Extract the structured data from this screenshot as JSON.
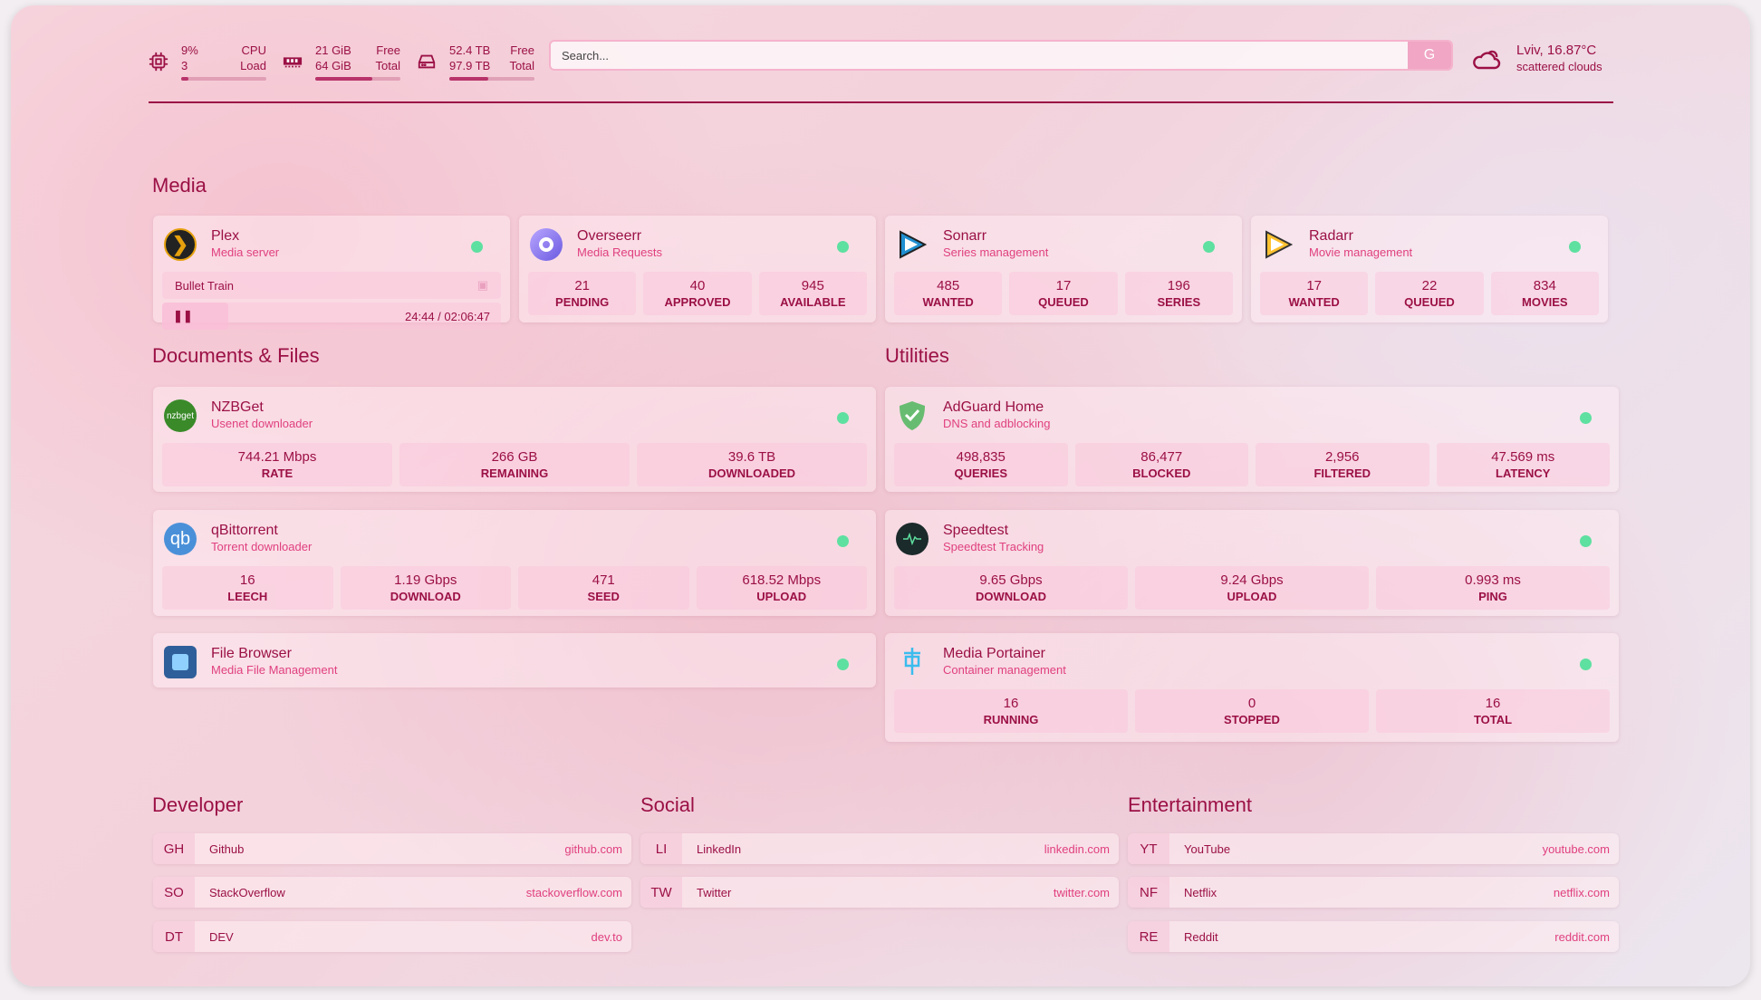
{
  "header": {
    "cpu": {
      "icon": "cpu-icon",
      "value": "9%",
      "label": "CPU",
      "sub": "3",
      "sub_label": "Load",
      "percent": 9
    },
    "memory": {
      "icon": "memory-icon",
      "value": "21 GiB",
      "label": "Free",
      "sub": "64 GiB",
      "sub_label": "Total",
      "percent": 67
    },
    "disk": {
      "icon": "disk-icon",
      "value": "52.4 TB",
      "label": "Free",
      "sub": "97.9 TB",
      "sub_label": "Total",
      "percent": 46
    },
    "search": {
      "placeholder": "Search...",
      "button": "G"
    },
    "weather": {
      "icon": "cloud-sun-icon",
      "location": "Lviv, 16.87°C",
      "condition": "scattered clouds"
    }
  },
  "sections": {
    "media": "Media",
    "docs": "Documents & Files",
    "utilities": "Utilities",
    "developer": "Developer",
    "social": "Social",
    "entertainment": "Entertainment"
  },
  "media": [
    {
      "name": "Plex",
      "desc": "Media server",
      "now_playing": "Bullet Train",
      "time": "24:44 / 02:06:47",
      "progress": 19.6
    },
    {
      "name": "Overseerr",
      "desc": "Media Requests",
      "stats": [
        [
          "21",
          "PENDING"
        ],
        [
          "40",
          "APPROVED"
        ],
        [
          "945",
          "AVAILABLE"
        ]
      ]
    },
    {
      "name": "Sonarr",
      "desc": "Series management",
      "stats": [
        [
          "485",
          "WANTED"
        ],
        [
          "17",
          "QUEUED"
        ],
        [
          "196",
          "SERIES"
        ]
      ]
    },
    {
      "name": "Radarr",
      "desc": "Movie management",
      "stats": [
        [
          "17",
          "WANTED"
        ],
        [
          "22",
          "QUEUED"
        ],
        [
          "834",
          "MOVIES"
        ]
      ]
    }
  ],
  "docs": [
    {
      "name": "NZBGet",
      "desc": "Usenet downloader",
      "icon_text": "nzbget",
      "stats": [
        [
          "744.21 Mbps",
          "RATE"
        ],
        [
          "266 GB",
          "REMAINING"
        ],
        [
          "39.6 TB",
          "DOWNLOADED"
        ]
      ]
    },
    {
      "name": "qBittorrent",
      "desc": "Torrent downloader",
      "icon_text": "qb",
      "stats": [
        [
          "16",
          "LEECH"
        ],
        [
          "1.19 Gbps",
          "DOWNLOAD"
        ],
        [
          "471",
          "SEED"
        ],
        [
          "618.52 Mbps",
          "UPLOAD"
        ]
      ]
    },
    {
      "name": "File Browser",
      "desc": "Media File Management"
    }
  ],
  "utilities": [
    {
      "name": "AdGuard Home",
      "desc": "DNS and adblocking",
      "stats": [
        [
          "498,835",
          "QUERIES"
        ],
        [
          "86,477",
          "BLOCKED"
        ],
        [
          "2,956",
          "FILTERED"
        ],
        [
          "47.569 ms",
          "LATENCY"
        ]
      ]
    },
    {
      "name": "Speedtest",
      "desc": "Speedtest Tracking",
      "stats": [
        [
          "9.65 Gbps",
          "DOWNLOAD"
        ],
        [
          "9.24 Gbps",
          "UPLOAD"
        ],
        [
          "0.993 ms",
          "PING"
        ]
      ]
    },
    {
      "name": "Media Portainer",
      "desc": "Container management",
      "stats": [
        [
          "16",
          "RUNNING"
        ],
        [
          "0",
          "STOPPED"
        ],
        [
          "16",
          "TOTAL"
        ]
      ]
    }
  ],
  "bookmarks": {
    "developer": [
      [
        "GH",
        "Github",
        "github.com"
      ],
      [
        "SO",
        "StackOverflow",
        "stackoverflow.com"
      ],
      [
        "DT",
        "DEV",
        "dev.to"
      ]
    ],
    "social": [
      [
        "LI",
        "LinkedIn",
        "linkedin.com"
      ],
      [
        "TW",
        "Twitter",
        "twitter.com"
      ]
    ],
    "entertainment": [
      [
        "YT",
        "YouTube",
        "youtube.com"
      ],
      [
        "NF",
        "Netflix",
        "netflix.com"
      ],
      [
        "RE",
        "Reddit",
        "reddit.com"
      ]
    ]
  },
  "colors": {
    "accent": "#9b1045",
    "link": "#e0407f",
    "status_online": "#5ee0a0"
  }
}
